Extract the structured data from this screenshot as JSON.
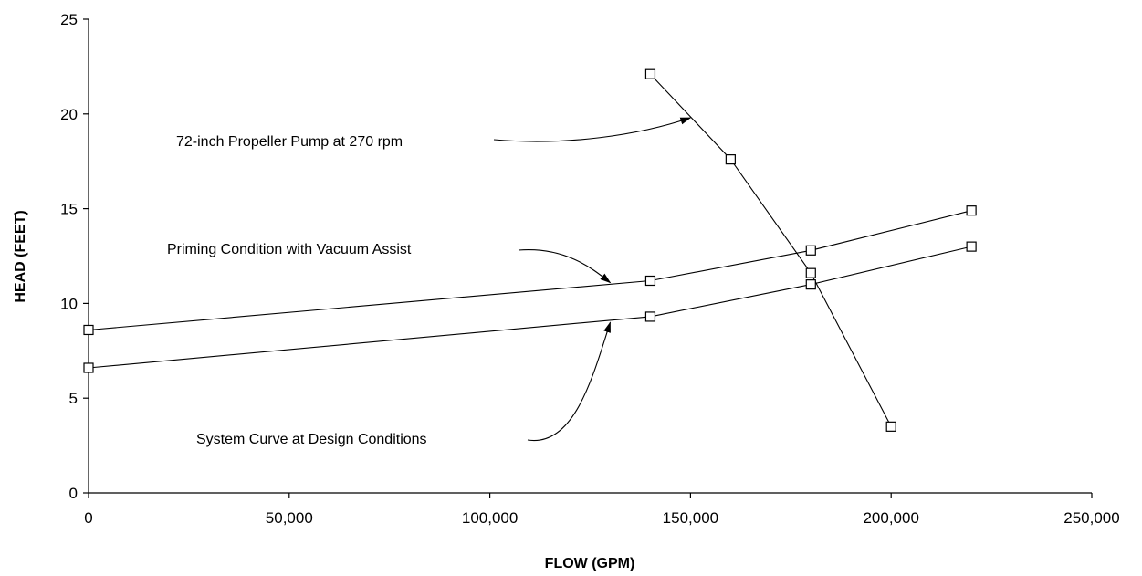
{
  "chart_data": {
    "type": "line",
    "xlabel": "FLOW (GPM)",
    "ylabel": "HEAD (FEET)",
    "xlim": [
      0,
      250000
    ],
    "ylim": [
      0,
      25
    ],
    "x_ticks": [
      0,
      50000,
      100000,
      150000,
      200000,
      250000
    ],
    "x_tick_labels": [
      "0",
      "50,000",
      "100,000",
      "150,000",
      "200,000",
      "250,000"
    ],
    "y_ticks": [
      0,
      5,
      10,
      15,
      20,
      25
    ],
    "y_tick_labels": [
      "0",
      "5",
      "10",
      "15",
      "20",
      "25"
    ],
    "grid": false,
    "marker": "open-square",
    "series": [
      {
        "x": [
          140000,
          160000,
          180000,
          200000
        ],
        "y": [
          22.1,
          17.6,
          11.6,
          3.5
        ]
      },
      {
        "x": [
          0,
          140000,
          180000,
          220000
        ],
        "y": [
          8.6,
          11.2,
          12.8,
          14.9
        ]
      },
      {
        "x": [
          0,
          140000,
          180000,
          220000
        ],
        "y": [
          6.6,
          9.3,
          11.0,
          13.0
        ]
      }
    ],
    "annotations": [
      {
        "text": "72-inch Propeller Pump at 270 rpm",
        "target": [
          150000,
          19.8
        ]
      },
      {
        "text": "Priming Condition with Vacuum Assist",
        "target": [
          130000,
          11.1
        ]
      },
      {
        "text": "System Curve at Design Conditions",
        "target": [
          130000,
          9.0
        ]
      }
    ]
  }
}
